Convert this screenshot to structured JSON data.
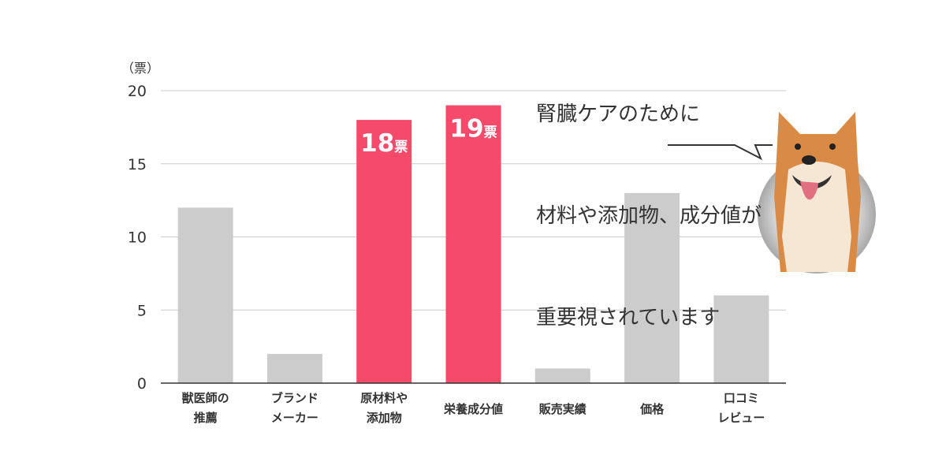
{
  "chart_data": {
    "type": "bar",
    "unit_label": "（票）",
    "categories": [
      [
        "獣医師の",
        "推薦"
      ],
      [
        "ブランド",
        "メーカー"
      ],
      [
        "原材料や",
        "添加物"
      ],
      [
        "栄養成分値"
      ],
      [
        "販売実績"
      ],
      [
        "価格"
      ],
      [
        "口コミ",
        "レビュー"
      ]
    ],
    "values": [
      12,
      2,
      18,
      19,
      1,
      13,
      6
    ],
    "highlighted": [
      false,
      false,
      true,
      true,
      false,
      false,
      false
    ],
    "data_labels": [
      "",
      "",
      "18",
      "19",
      "",
      "",
      ""
    ],
    "data_label_suffix": "票",
    "ylim": [
      0,
      20
    ],
    "yticks": [
      0,
      5,
      10,
      15,
      20
    ],
    "grid": true,
    "colors": {
      "default": "#cccccc",
      "highlight": "#f64a6b",
      "grid": "#cccccc",
      "axis": "#333333"
    }
  },
  "callout": {
    "lines": [
      "腎臓ケアのために",
      "材料や添加物、成分値が",
      "重要視されています"
    ],
    "image": "shiba-inu-dog"
  }
}
